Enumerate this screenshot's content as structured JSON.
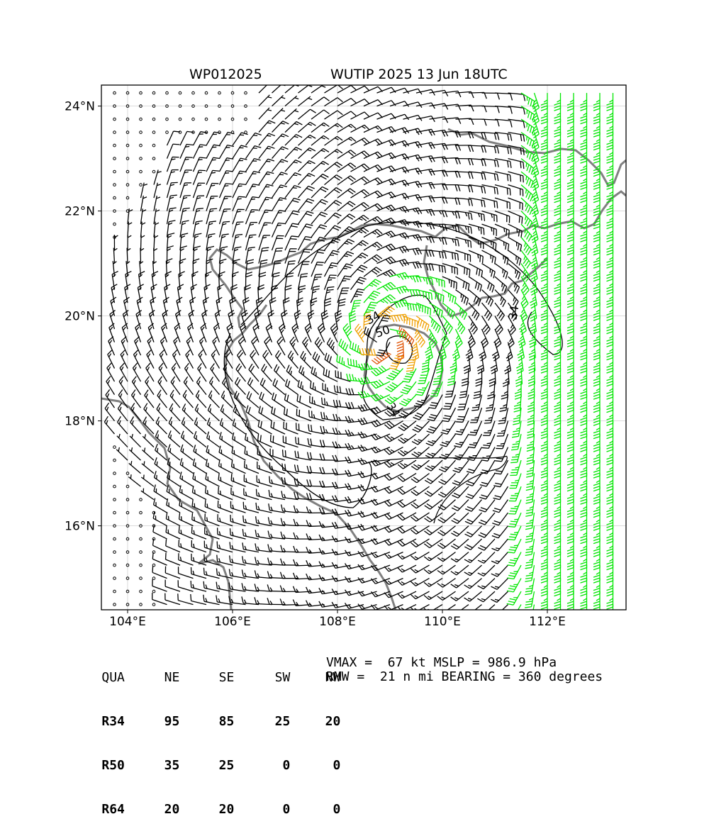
{
  "title": {
    "storm_id": "WP012025",
    "storm_name_time": "WUTIP 2025 13 Jun 18UTC"
  },
  "chart_data": {
    "type": "wind_barb_map",
    "xlim": [
      103.5,
      113.5
    ],
    "ylim": [
      14.4,
      24.4
    ],
    "grid": true,
    "x_ticks": [
      {
        "value": 104,
        "label": "104°E"
      },
      {
        "value": 106,
        "label": "106°E"
      },
      {
        "value": 108,
        "label": "108°E"
      },
      {
        "value": 110,
        "label": "110°E"
      },
      {
        "value": 112,
        "label": "112°E"
      }
    ],
    "y_ticks": [
      {
        "value": 16,
        "label": "16°N"
      },
      {
        "value": 18,
        "label": "18°N"
      },
      {
        "value": 20,
        "label": "20°N"
      },
      {
        "value": 22,
        "label": "22°N"
      },
      {
        "value": 24,
        "label": "24°N"
      }
    ],
    "storm_center": {
      "lon": 108.9,
      "lat": 19.6
    },
    "wind_field": {
      "grid_spacing_deg": 0.25,
      "rmw_nmi": 21,
      "vmax_kt": 67,
      "r34_nmi": {
        "NE": 95,
        "SE": 85,
        "SW": 25,
        "NW": 20
      },
      "r50_nmi": {
        "NE": 35,
        "SE": 25,
        "SW": 0,
        "NW": 0
      },
      "r64_nmi": {
        "NE": 20,
        "SE": 20,
        "SW": 0,
        "NW": 0
      },
      "southerly_flow_east_of_lon": 111.3,
      "calm_north_of_lat": 23.4
    },
    "contours": [
      {
        "label": "34",
        "value": 34
      },
      {
        "label": "50",
        "value": 50
      },
      {
        "label": "34",
        "value": 34
      },
      {
        "label": "34",
        "value": 34
      }
    ],
    "barb_colors": {
      "below_34": "#000000",
      "from_34": "#00e600",
      "from_50": "#f0a000",
      "from_64": "#e05000"
    },
    "coastline_color": "#808080"
  },
  "radii_table": {
    "header": [
      "QUA",
      "NE",
      "SE",
      "SW",
      "NW"
    ],
    "rows": [
      {
        "label": "R34",
        "values": [
          "95",
          "85",
          "25",
          "20"
        ]
      },
      {
        "label": "R50",
        "values": [
          "35",
          "25",
          "0",
          "0"
        ]
      },
      {
        "label": "R64",
        "values": [
          "20",
          "20",
          "0",
          "0"
        ]
      }
    ]
  },
  "info": {
    "line1": "VMAX =  67 kt MSLP = 986.9 hPa",
    "line2": "RMW =  21 n mi BEARING = 360 degrees"
  }
}
